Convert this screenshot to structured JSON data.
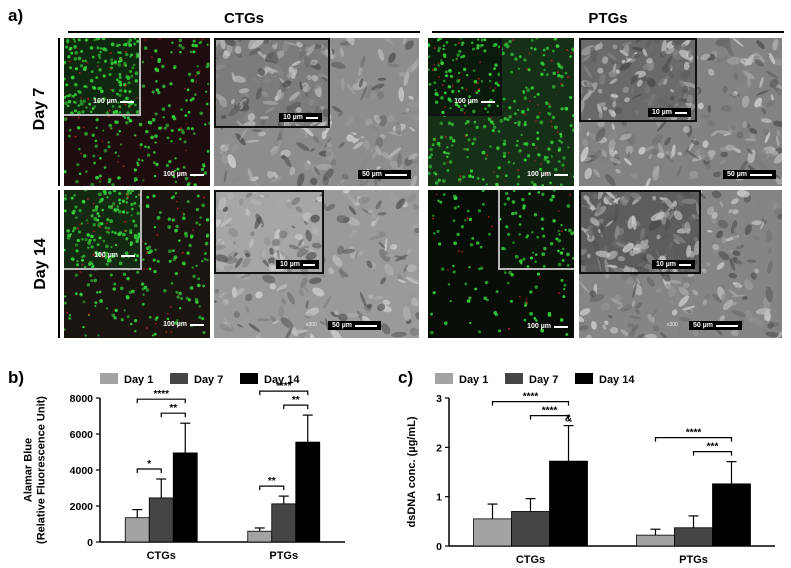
{
  "figure": {
    "panel_a": "a)",
    "panel_b": "b)",
    "panel_c": "c)",
    "groups": [
      "CTGs",
      "PTGs"
    ],
    "rows": [
      "Day 7",
      "Day 14"
    ],
    "scale_labels": {
      "fluor_main": "100 µm",
      "fluor_inset": "100 µm",
      "sem_main": "50 µm",
      "sem_inset": "10 µm",
      "sem_mag": "x300"
    },
    "colors": {
      "day1": "#a3a3a3",
      "day7": "#454545",
      "day14": "#000000",
      "live_cells": "#35d13a",
      "dead_cells": "#d12020"
    }
  },
  "chart_data": [
    {
      "type": "bar",
      "ylabel": "Alamar Blue (Relative Fluorescence Unit)",
      "ylabel_lines": [
        "Alamar Blue",
        "(Relative Fluorescence Unit)"
      ],
      "categories": [
        "CTGs",
        "PTGs"
      ],
      "ylim": [
        0,
        8000
      ],
      "yticks": [
        0,
        2000,
        4000,
        6000,
        8000
      ],
      "legend_position": "top",
      "series": [
        {
          "name": "Day 1",
          "values": [
            1350,
            600
          ],
          "errors": [
            450,
            180
          ]
        },
        {
          "name": "Day 7",
          "values": [
            2450,
            2120
          ],
          "errors": [
            1050,
            430
          ]
        },
        {
          "name": "Day 14",
          "values": [
            4950,
            5550
          ],
          "errors": [
            1650,
            1500
          ]
        }
      ],
      "significance": [
        {
          "category": 0,
          "from": 0,
          "to": 1,
          "label": "*"
        },
        {
          "category": 0,
          "from": 1,
          "to": 2,
          "label": "**"
        },
        {
          "category": 0,
          "from": 0,
          "to": 2,
          "label": "****"
        },
        {
          "category": 1,
          "from": 0,
          "to": 1,
          "label": "**"
        },
        {
          "category": 1,
          "from": 1,
          "to": 2,
          "label": "**"
        },
        {
          "category": 1,
          "from": 0,
          "to": 2,
          "label": "****"
        }
      ]
    },
    {
      "type": "bar",
      "ylabel": "dsDNA conc. (µg/mL)",
      "ylabel_lines": [
        "dsDNA conc. (µg/mL)"
      ],
      "categories": [
        "CTGs",
        "PTGs"
      ],
      "ylim": [
        0,
        3
      ],
      "yticks": [
        0,
        1,
        2,
        3
      ],
      "legend_position": "top",
      "series": [
        {
          "name": "Day 1",
          "values": [
            0.55,
            0.22
          ],
          "errors": [
            0.3,
            0.12
          ]
        },
        {
          "name": "Day 7",
          "values": [
            0.7,
            0.37
          ],
          "errors": [
            0.26,
            0.24
          ]
        },
        {
          "name": "Day 14",
          "values": [
            1.72,
            1.26
          ],
          "errors": [
            0.72,
            0.45
          ]
        }
      ],
      "significance": [
        {
          "category": 0,
          "from": 1,
          "to": 2,
          "label": "****"
        },
        {
          "category": 0,
          "from": 0,
          "to": 2,
          "label": "****"
        },
        {
          "category": 1,
          "from": 1,
          "to": 2,
          "label": "***"
        },
        {
          "category": 1,
          "from": 0,
          "to": 2,
          "label": "****"
        }
      ],
      "annotations": [
        {
          "category": 0,
          "series": 2,
          "label": "&"
        }
      ]
    }
  ]
}
